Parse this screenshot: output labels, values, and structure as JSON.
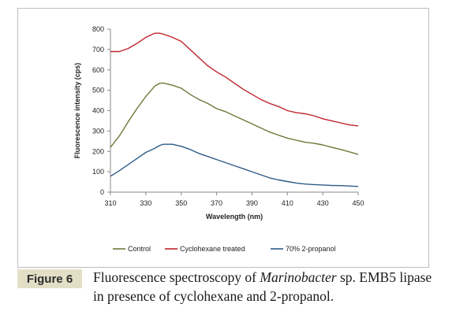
{
  "chart_data": {
    "type": "line",
    "title": "",
    "xlabel": "Wavelength (nm)",
    "ylabel": "Fluorescence intensity (cps)",
    "xlim": [
      310,
      450
    ],
    "ylim": [
      0,
      800
    ],
    "xticks": [
      310,
      330,
      350,
      370,
      390,
      410,
      430,
      450
    ],
    "yticks": [
      0,
      100,
      200,
      300,
      400,
      500,
      600,
      700,
      800
    ],
    "grid": false,
    "legend_position": "bottom",
    "series": [
      {
        "name": "Control",
        "color": "#71763a",
        "x": [
          310,
          315,
          320,
          325,
          330,
          335,
          338,
          340,
          345,
          350,
          355,
          360,
          365,
          370,
          375,
          380,
          385,
          390,
          395,
          400,
          405,
          410,
          415,
          420,
          425,
          430,
          435,
          440,
          445,
          450
        ],
        "y": [
          220,
          275,
          345,
          410,
          470,
          520,
          535,
          535,
          525,
          510,
          480,
          455,
          435,
          410,
          395,
          375,
          355,
          335,
          315,
          295,
          280,
          265,
          255,
          245,
          240,
          232,
          220,
          210,
          198,
          185
        ]
      },
      {
        "name": "Cyclohexane treated",
        "color": "#c0232b",
        "x": [
          310,
          315,
          320,
          325,
          330,
          335,
          338,
          340,
          345,
          350,
          355,
          360,
          365,
          370,
          375,
          380,
          385,
          390,
          395,
          400,
          405,
          410,
          415,
          420,
          425,
          430,
          435,
          440,
          445,
          450
        ],
        "y": [
          690,
          690,
          705,
          730,
          760,
          780,
          780,
          775,
          760,
          740,
          700,
          660,
          620,
          590,
          565,
          535,
          505,
          480,
          455,
          435,
          420,
          400,
          390,
          385,
          375,
          360,
          350,
          340,
          330,
          325
        ]
      },
      {
        "name": "70% 2-propanol",
        "color": "#2e5b86",
        "x": [
          310,
          315,
          320,
          325,
          330,
          335,
          338,
          340,
          345,
          350,
          355,
          360,
          365,
          370,
          375,
          380,
          385,
          390,
          395,
          400,
          405,
          410,
          415,
          420,
          425,
          430,
          435,
          440,
          445,
          450
        ],
        "y": [
          78,
          105,
          135,
          165,
          195,
          215,
          230,
          235,
          235,
          225,
          210,
          190,
          175,
          160,
          145,
          130,
          115,
          100,
          85,
          70,
          60,
          52,
          45,
          40,
          37,
          35,
          33,
          32,
          30,
          28
        ]
      }
    ]
  },
  "caption": {
    "label": "Figure 6",
    "text_prefix": "Fluorescence spectroscopy of ",
    "text_italic": "Marinobacter",
    "text_suffix": " sp. EMB5 lipase in presence of cyclohexane and 2-propanol."
  }
}
